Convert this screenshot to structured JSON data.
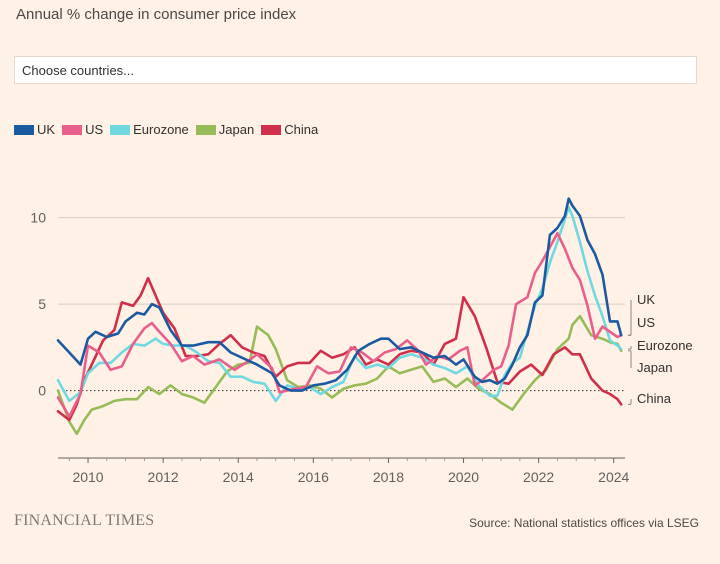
{
  "subtitle": "Annual % change in consumer price index",
  "selector": {
    "placeholder": "Choose countries..."
  },
  "footer": {
    "logo": "FINANCIAL TIMES",
    "source": "Source: National statistics offices via LSEG"
  },
  "colors": {
    "UK": "#1c5aa0",
    "US": "#e85f8c",
    "Eurozone": "#70d8e1",
    "Japan": "#96bb57",
    "China": "#cf2f4b",
    "grid": "#d8cbc0",
    "text": "#33302e"
  },
  "chart_data": {
    "type": "line",
    "title": "Annual % change in consumer price index",
    "xlabel": "",
    "ylabel": "",
    "xlim": [
      2009.2,
      2024.3
    ],
    "ylim": [
      -3.9,
      11.6
    ],
    "yticks": [
      0,
      5,
      10
    ],
    "ytick_labels": [
      "0",
      "5",
      "10"
    ],
    "xticks": [
      2010,
      2012,
      2014,
      2016,
      2018,
      2020,
      2022,
      2024
    ],
    "xtick_labels": [
      "2010",
      "2012",
      "2014",
      "2016",
      "2018",
      "2020",
      "2022",
      "2024"
    ],
    "zero_line": "dotted",
    "legend_position": "top-left",
    "series": [
      {
        "name": "UK",
        "end_label": "UK",
        "x": [
          2009.2,
          2009.5,
          2009.8,
          2010.0,
          2010.2,
          2010.5,
          2010.8,
          2011.0,
          2011.3,
          2011.5,
          2011.7,
          2011.9,
          2012.2,
          2012.5,
          2012.8,
          2013.2,
          2013.5,
          2013.8,
          2014.1,
          2014.5,
          2014.9,
          2015.1,
          2015.4,
          2015.7,
          2016.0,
          2016.3,
          2016.6,
          2016.9,
          2017.2,
          2017.5,
          2017.8,
          2018.0,
          2018.3,
          2018.6,
          2018.9,
          2019.2,
          2019.5,
          2019.8,
          2020.0,
          2020.3,
          2020.5,
          2020.7,
          2020.9,
          2021.1,
          2021.3,
          2021.5,
          2021.7,
          2021.9,
          2022.1,
          2022.3,
          2022.5,
          2022.7,
          2022.8,
          2022.9,
          2023.1,
          2023.3,
          2023.5,
          2023.7,
          2023.9,
          2024.1,
          2024.2
        ],
        "values": [
          2.9,
          2.2,
          1.5,
          3.0,
          3.4,
          3.1,
          3.3,
          4.0,
          4.5,
          4.4,
          5.0,
          4.8,
          3.5,
          2.6,
          2.6,
          2.8,
          2.8,
          2.2,
          1.9,
          1.5,
          1.0,
          0.3,
          0.0,
          0.0,
          0.3,
          0.4,
          0.6,
          1.2,
          2.3,
          2.7,
          3.0,
          3.0,
          2.4,
          2.5,
          2.2,
          1.9,
          2.0,
          1.5,
          1.8,
          0.8,
          0.5,
          0.6,
          0.4,
          0.7,
          1.5,
          2.5,
          3.2,
          5.1,
          5.5,
          9.0,
          9.4,
          10.1,
          11.1,
          10.7,
          10.1,
          8.7,
          7.9,
          6.7,
          4.0,
          4.0,
          3.2
        ]
      },
      {
        "name": "US",
        "end_label": "US",
        "x": [
          2009.2,
          2009.5,
          2009.8,
          2010.0,
          2010.3,
          2010.6,
          2010.9,
          2011.2,
          2011.5,
          2011.7,
          2011.9,
          2012.2,
          2012.5,
          2012.8,
          2013.1,
          2013.5,
          2013.9,
          2014.2,
          2014.5,
          2014.9,
          2015.1,
          2015.5,
          2015.8,
          2016.1,
          2016.4,
          2016.7,
          2017.0,
          2017.3,
          2017.6,
          2017.9,
          2018.2,
          2018.5,
          2018.8,
          2019.0,
          2019.3,
          2019.6,
          2019.9,
          2020.1,
          2020.3,
          2020.5,
          2020.8,
          2021.0,
          2021.2,
          2021.4,
          2021.7,
          2021.9,
          2022.1,
          2022.3,
          2022.5,
          2022.7,
          2022.9,
          2023.1,
          2023.3,
          2023.5,
          2023.7,
          2023.9,
          2024.1,
          2024.2
        ],
        "values": [
          -0.4,
          -1.5,
          -0.2,
          2.6,
          2.2,
          1.2,
          1.4,
          2.7,
          3.6,
          3.9,
          3.4,
          2.7,
          1.7,
          2.0,
          1.5,
          1.8,
          1.2,
          1.6,
          2.1,
          1.3,
          -0.1,
          0.1,
          0.2,
          1.4,
          1.0,
          1.1,
          2.5,
          2.2,
          1.7,
          2.2,
          2.4,
          2.9,
          2.3,
          1.5,
          2.0,
          1.8,
          2.3,
          2.5,
          0.3,
          0.6,
          1.2,
          1.4,
          2.6,
          5.0,
          5.4,
          6.8,
          7.5,
          8.3,
          9.1,
          8.2,
          7.1,
          6.4,
          4.9,
          3.0,
          3.7,
          3.4,
          3.1,
          3.2
        ]
      },
      {
        "name": "Eurozone",
        "end_label": "Eurozone",
        "x": [
          2009.2,
          2009.5,
          2009.8,
          2010.0,
          2010.3,
          2010.6,
          2010.9,
          2011.2,
          2011.5,
          2011.8,
          2012.0,
          2012.3,
          2012.6,
          2012.9,
          2013.2,
          2013.5,
          2013.8,
          2014.1,
          2014.4,
          2014.7,
          2015.0,
          2015.3,
          2015.6,
          2015.9,
          2016.2,
          2016.5,
          2016.8,
          2017.1,
          2017.4,
          2017.7,
          2018.0,
          2018.3,
          2018.6,
          2018.9,
          2019.2,
          2019.5,
          2019.8,
          2020.1,
          2020.4,
          2020.7,
          2020.9,
          2021.1,
          2021.3,
          2021.5,
          2021.7,
          2021.9,
          2022.1,
          2022.3,
          2022.5,
          2022.7,
          2022.8,
          2022.9,
          2023.1,
          2023.3,
          2023.5,
          2023.7,
          2023.9,
          2024.1,
          2024.2
        ],
        "values": [
          0.6,
          -0.6,
          -0.1,
          1.0,
          1.6,
          1.6,
          2.2,
          2.7,
          2.6,
          3.0,
          2.7,
          2.6,
          2.6,
          2.2,
          1.7,
          1.6,
          0.8,
          0.8,
          0.5,
          0.4,
          -0.6,
          0.3,
          0.1,
          0.2,
          -0.2,
          0.2,
          0.5,
          2.0,
          1.3,
          1.5,
          1.3,
          1.9,
          2.1,
          1.9,
          1.5,
          1.3,
          1.0,
          1.4,
          0.3,
          -0.3,
          -0.3,
          0.9,
          1.6,
          1.9,
          3.4,
          4.9,
          5.9,
          7.4,
          8.6,
          9.9,
          10.6,
          10.1,
          8.6,
          6.9,
          5.5,
          4.3,
          2.9,
          2.6,
          2.4
        ]
      },
      {
        "name": "Japan",
        "end_label": "Japan",
        "x": [
          2009.2,
          2009.5,
          2009.7,
          2009.9,
          2010.1,
          2010.4,
          2010.7,
          2011.0,
          2011.3,
          2011.6,
          2011.9,
          2012.2,
          2012.5,
          2012.8,
          2013.1,
          2013.4,
          2013.7,
          2014.0,
          2014.3,
          2014.5,
          2014.8,
          2015.0,
          2015.3,
          2015.6,
          2015.9,
          2016.2,
          2016.5,
          2016.8,
          2017.1,
          2017.4,
          2017.7,
          2018.0,
          2018.3,
          2018.6,
          2018.9,
          2019.2,
          2019.5,
          2019.8,
          2020.1,
          2020.4,
          2020.7,
          2021.0,
          2021.3,
          2021.6,
          2021.9,
          2022.2,
          2022.5,
          2022.8,
          2022.9,
          2023.1,
          2023.4,
          2023.7,
          2023.9,
          2024.1,
          2024.2
        ],
        "values": [
          0.0,
          -1.8,
          -2.5,
          -1.7,
          -1.1,
          -0.9,
          -0.6,
          -0.5,
          -0.5,
          0.2,
          -0.2,
          0.3,
          -0.2,
          -0.4,
          -0.7,
          0.2,
          1.1,
          1.5,
          1.6,
          3.7,
          3.2,
          2.4,
          0.6,
          0.2,
          0.3,
          0.1,
          -0.4,
          0.1,
          0.3,
          0.4,
          0.7,
          1.4,
          1.0,
          1.2,
          1.4,
          0.5,
          0.7,
          0.2,
          0.7,
          0.1,
          -0.2,
          -0.7,
          -1.1,
          -0.2,
          0.6,
          1.2,
          2.4,
          3.0,
          3.8,
          4.3,
          3.2,
          3.0,
          2.8,
          2.7,
          2.3
        ]
      },
      {
        "name": "China",
        "end_label": "China",
        "x": [
          2009.2,
          2009.5,
          2009.7,
          2009.9,
          2010.1,
          2010.4,
          2010.7,
          2010.9,
          2011.2,
          2011.4,
          2011.6,
          2011.8,
          2012.0,
          2012.3,
          2012.6,
          2012.9,
          2013.2,
          2013.5,
          2013.8,
          2014.1,
          2014.4,
          2014.7,
          2015.0,
          2015.3,
          2015.6,
          2015.9,
          2016.2,
          2016.5,
          2016.8,
          2017.1,
          2017.4,
          2017.7,
          2018.0,
          2018.3,
          2018.6,
          2018.9,
          2019.2,
          2019.5,
          2019.8,
          2020.0,
          2020.3,
          2020.6,
          2020.9,
          2021.2,
          2021.5,
          2021.8,
          2022.1,
          2022.4,
          2022.7,
          2022.9,
          2023.1,
          2023.4,
          2023.7,
          2023.9,
          2024.1,
          2024.2
        ],
        "values": [
          -1.2,
          -1.7,
          -0.8,
          0.6,
          1.5,
          2.9,
          3.5,
          5.1,
          4.9,
          5.5,
          6.5,
          5.5,
          4.5,
          3.6,
          2.0,
          2.0,
          2.1,
          2.7,
          3.2,
          2.5,
          2.2,
          2.0,
          0.8,
          1.4,
          1.6,
          1.6,
          2.3,
          1.9,
          2.1,
          2.5,
          1.5,
          1.8,
          1.5,
          2.1,
          2.3,
          2.2,
          1.5,
          2.7,
          3.0,
          5.4,
          4.3,
          2.5,
          0.5,
          0.4,
          1.1,
          1.5,
          0.9,
          2.1,
          2.5,
          2.1,
          2.1,
          0.7,
          0.0,
          -0.2,
          -0.5,
          -0.8
        ]
      }
    ]
  }
}
